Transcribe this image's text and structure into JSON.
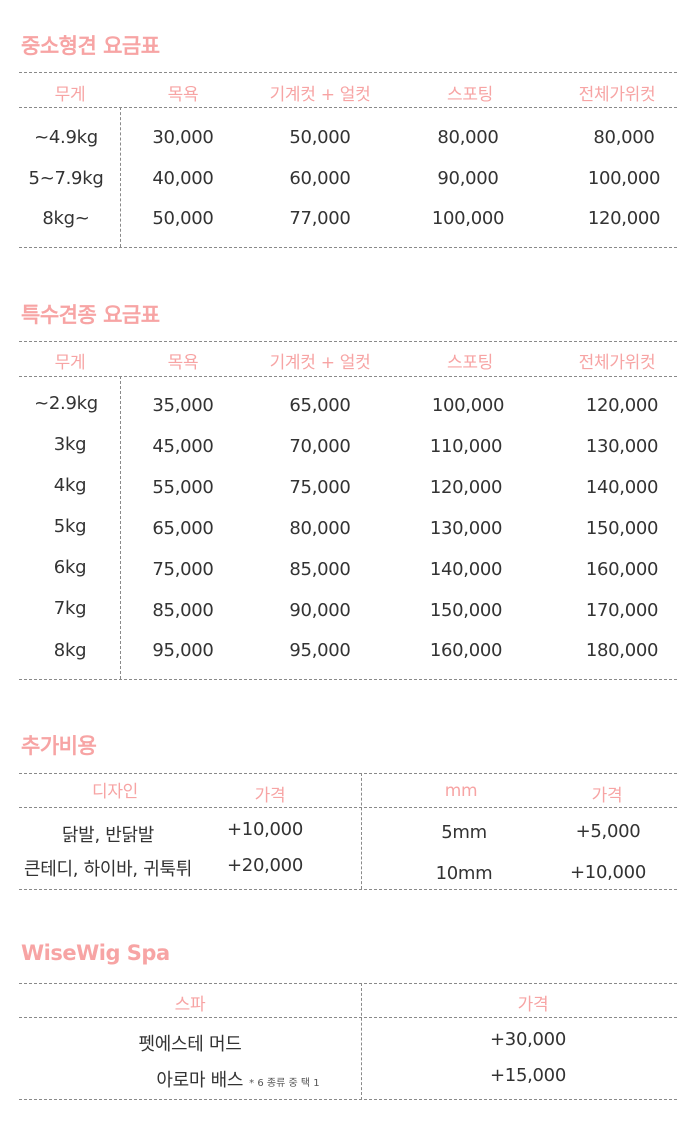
{
  "colors": {
    "accent": "#f7a4a4",
    "text": "#333333",
    "divider": "#8a8a8a"
  },
  "small_medium": {
    "title": "중소형견 요금표",
    "headers": [
      "무게",
      "목욕",
      "기계컷 + 얼컷",
      "스포팅",
      "전체가위컷"
    ],
    "rows": [
      [
        "~4.9kg",
        "30,000",
        "50,000",
        "80,000",
        "80,000"
      ],
      [
        "5~7.9kg",
        "40,000",
        "60,000",
        "90,000",
        "100,000"
      ],
      [
        "8kg~",
        "50,000",
        "77,000",
        "100,000",
        "120,000"
      ]
    ]
  },
  "special": {
    "title": "특수견종 요금표",
    "headers": [
      "무게",
      "목욕",
      "기계컷 + 얼컷",
      "스포팅",
      "전체가위컷"
    ],
    "rows": [
      [
        "~2.9kg",
        "35,000",
        "65,000",
        "100,000",
        "120,000"
      ],
      [
        "3kg",
        "45,000",
        "70,000",
        "110,000",
        "130,000"
      ],
      [
        "4kg",
        "55,000",
        "75,000",
        "120,000",
        "140,000"
      ],
      [
        "5kg",
        "65,000",
        "80,000",
        "130,000",
        "150,000"
      ],
      [
        "6kg",
        "75,000",
        "85,000",
        "140,000",
        "160,000"
      ],
      [
        "7kg",
        "85,000",
        "90,000",
        "150,000",
        "170,000"
      ],
      [
        "8kg",
        "95,000",
        "95,000",
        "160,000",
        "180,000"
      ]
    ]
  },
  "extra": {
    "title": "추가비용",
    "design_header": "디자인",
    "design_price_header": "가격",
    "mm_header": "mm",
    "mm_price_header": "가격",
    "design_rows": [
      [
        "닭발, 반닭발",
        "+10,000"
      ],
      [
        "큰테디, 하이바, 귀툭튀",
        "+20,000"
      ]
    ],
    "mm_rows": [
      [
        "5mm",
        "+5,000"
      ],
      [
        "10mm",
        "+10,000"
      ]
    ]
  },
  "spa": {
    "title": "WiseWig Spa",
    "spa_header": "스파",
    "price_header": "가격",
    "rows": [
      {
        "name": "펫에스테 머드",
        "note": "",
        "price": "+30,000"
      },
      {
        "name": "아로마 배스",
        "note": "* 6 종류 중 택 1",
        "price": "+15,000"
      }
    ]
  }
}
